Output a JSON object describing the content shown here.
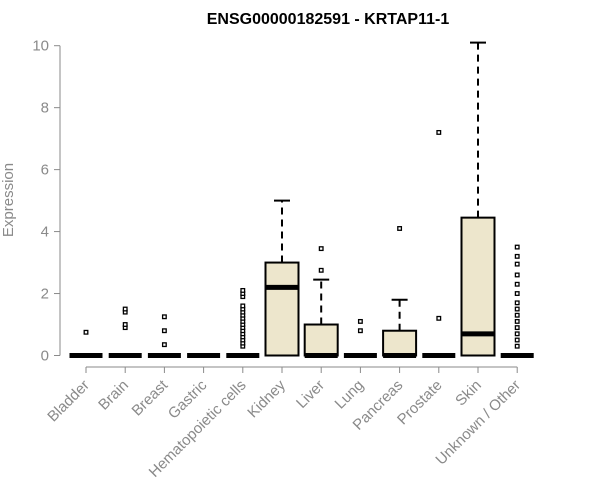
{
  "chart_data": {
    "type": "box",
    "title": "ENSG00000182591 - KRTAP11-1",
    "xlabel": "",
    "ylabel": "Expression",
    "ylim": [
      0,
      10
    ],
    "yticks": [
      0,
      2,
      4,
      6,
      8,
      10
    ],
    "box_fill": "#ede6cc",
    "categories": [
      "Bladder",
      "Brain",
      "Breast",
      "Gastric",
      "Hematopoietic cells",
      "Kidney",
      "Liver",
      "Lung",
      "Pancreas",
      "Prostate",
      "Skin",
      "Unknown / Other"
    ],
    "boxes": [
      {
        "q1": 0,
        "median": 0,
        "q3": 0,
        "whisker_low": 0,
        "whisker_high": 0,
        "outliers": [
          0.75
        ]
      },
      {
        "q1": 0,
        "median": 0,
        "q3": 0,
        "whisker_low": 0,
        "whisker_high": 0,
        "outliers": [
          0.9,
          1.0,
          1.4,
          1.5
        ]
      },
      {
        "q1": 0,
        "median": 0,
        "q3": 0,
        "whisker_low": 0,
        "whisker_high": 0,
        "outliers": [
          0.35,
          0.8,
          1.25
        ]
      },
      {
        "q1": 0,
        "median": 0,
        "q3": 0,
        "whisker_low": 0,
        "whisker_high": 0,
        "outliers": []
      },
      {
        "q1": 0,
        "median": 0,
        "q3": 0,
        "whisker_low": 0,
        "whisker_high": 0,
        "outliers": [
          0.3,
          0.4,
          0.5,
          0.6,
          0.7,
          0.8,
          0.9,
          1.0,
          1.1,
          1.2,
          1.3,
          1.4,
          1.5,
          1.6,
          1.9,
          2.0,
          2.1
        ]
      },
      {
        "q1": 0,
        "median": 2.2,
        "q3": 3.0,
        "whisker_low": 0,
        "whisker_high": 5.0,
        "outliers": []
      },
      {
        "q1": 0,
        "median": 0,
        "q3": 1.0,
        "whisker_low": 0,
        "whisker_high": 2.45,
        "outliers": [
          2.75,
          3.45
        ]
      },
      {
        "q1": 0,
        "median": 0,
        "q3": 0,
        "whisker_low": 0,
        "whisker_high": 0,
        "outliers": [
          0.8,
          1.1
        ]
      },
      {
        "q1": 0,
        "median": 0,
        "q3": 0.8,
        "whisker_low": 0,
        "whisker_high": 1.8,
        "outliers": [
          4.1
        ]
      },
      {
        "q1": 0,
        "median": 0,
        "q3": 0,
        "whisker_low": 0,
        "whisker_high": 0,
        "outliers": [
          1.2,
          7.2
        ]
      },
      {
        "q1": 0,
        "median": 0.7,
        "q3": 4.45,
        "whisker_low": 0,
        "whisker_high": 10.1,
        "outliers": []
      },
      {
        "q1": 0,
        "median": 0,
        "q3": 0,
        "whisker_low": 0,
        "whisker_high": 0,
        "outliers": [
          0.3,
          0.5,
          0.7,
          0.9,
          1.1,
          1.3,
          1.5,
          1.7,
          2.0,
          2.3,
          2.6,
          2.95,
          3.2,
          3.5
        ]
      }
    ]
  }
}
